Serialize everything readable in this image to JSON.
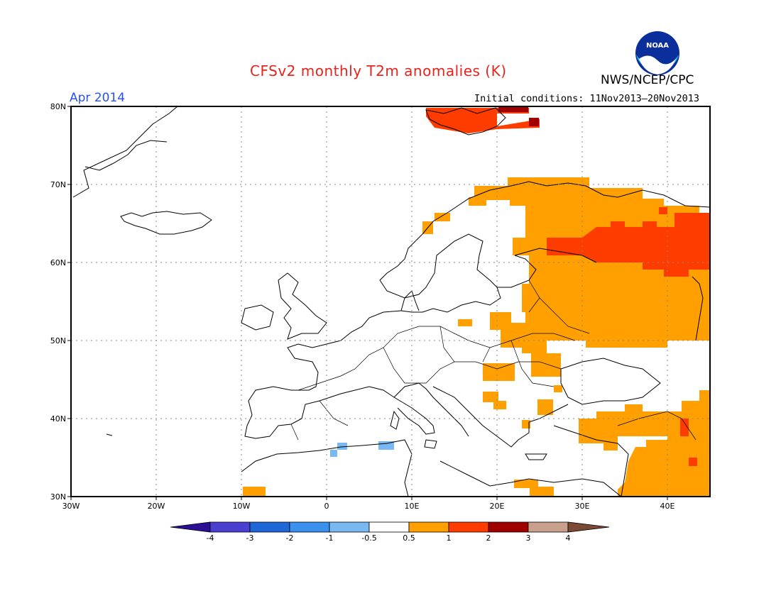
{
  "header": {
    "title": "CFSv2 monthly T2m anomalies (K)",
    "month": "Apr 2014",
    "initial_conditions": "Initial conditions: 11Nov2013–20Nov2013",
    "organization": "NWS/NCEP/CPC",
    "logo_text": "NOAA"
  },
  "map": {
    "lat_labels": [
      "80N",
      "70N",
      "60N",
      "50N",
      "40N",
      "30N"
    ],
    "lon_labels": [
      "30W",
      "20W",
      "10W",
      "0",
      "10E",
      "20E",
      "30E",
      "40E"
    ],
    "lat_range": [
      30,
      80
    ],
    "lon_range": [
      -30,
      45
    ]
  },
  "colorbar": {
    "tick_labels": [
      "-4",
      "-3",
      "-2",
      "-1",
      "-0.5",
      "0.5",
      "1",
      "2",
      "3",
      "4"
    ],
    "colors": [
      "#2b0f94",
      "#4a3fd0",
      "#1e67d6",
      "#3a91ee",
      "#79b8f0",
      "#ffffff",
      "#ffa000",
      "#ff3c00",
      "#a00000",
      "#c8a08c",
      "#7a4a35"
    ]
  }
}
